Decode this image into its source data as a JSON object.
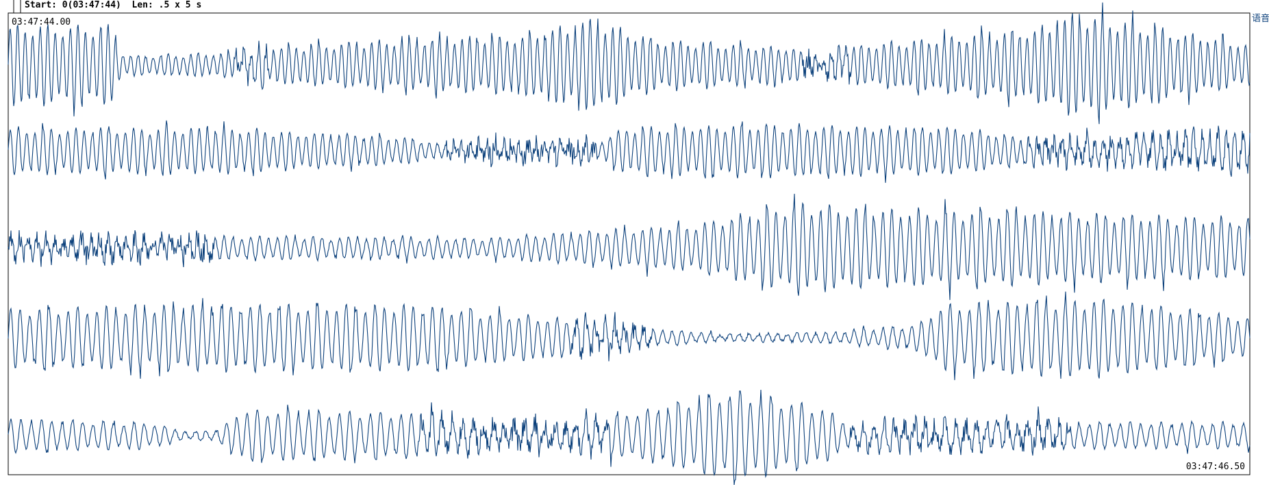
{
  "header": {
    "start_label": "Start: 0(03:47:44)  Len: .5 x 5 s"
  },
  "timestamps": {
    "start": "03:47:44.00",
    "end": "03:47:46.50"
  },
  "channel_label": "语音"
}
